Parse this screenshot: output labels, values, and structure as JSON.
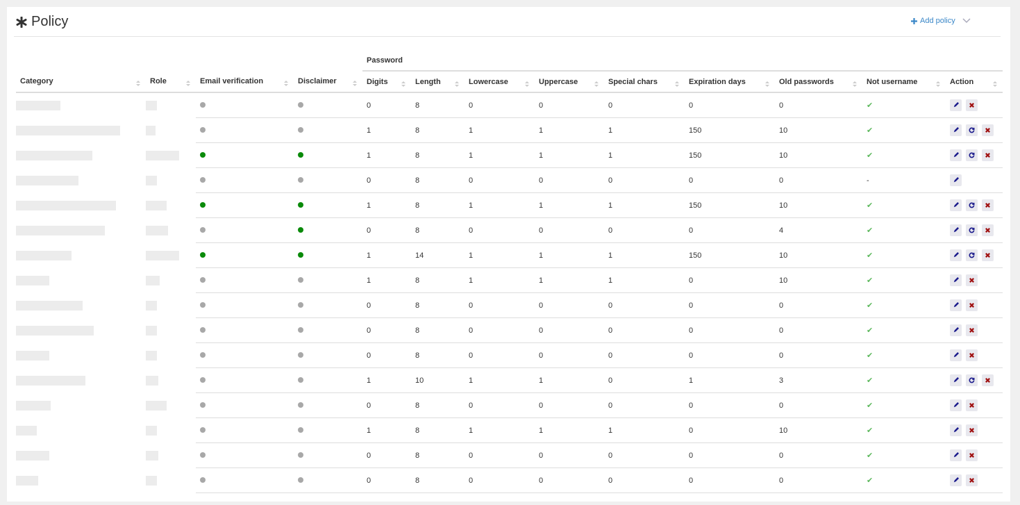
{
  "header": {
    "title": "Policy",
    "add_button": "Add policy"
  },
  "table": {
    "group_header": "Password",
    "columns": [
      "Category",
      "Role",
      "Email verification",
      "Disclaimer",
      "Digits",
      "Length",
      "Lowercase",
      "Uppercase",
      "Special chars",
      "Expiration days",
      "Old passwords",
      "Not username",
      "Action"
    ],
    "rows": [
      {
        "email": false,
        "disclaimer": false,
        "digits": 0,
        "length": 8,
        "lowercase": 0,
        "uppercase": 0,
        "special": 0,
        "expiration": 0,
        "old": 0,
        "not_username": "✔",
        "actions": [
          "edit",
          "delete"
        ]
      },
      {
        "email": false,
        "disclaimer": false,
        "digits": 1,
        "length": 8,
        "lowercase": 1,
        "uppercase": 1,
        "special": 1,
        "expiration": 150,
        "old": 10,
        "not_username": "✔",
        "actions": [
          "edit",
          "reset",
          "delete"
        ]
      },
      {
        "email": true,
        "disclaimer": true,
        "digits": 1,
        "length": 8,
        "lowercase": 1,
        "uppercase": 1,
        "special": 1,
        "expiration": 150,
        "old": 10,
        "not_username": "✔",
        "actions": [
          "edit",
          "reset",
          "delete"
        ]
      },
      {
        "email": false,
        "disclaimer": false,
        "digits": 0,
        "length": 8,
        "lowercase": 0,
        "uppercase": 0,
        "special": 0,
        "expiration": 0,
        "old": 0,
        "not_username": "-",
        "actions": [
          "edit"
        ]
      },
      {
        "email": true,
        "disclaimer": true,
        "digits": 1,
        "length": 8,
        "lowercase": 1,
        "uppercase": 1,
        "special": 1,
        "expiration": 150,
        "old": 10,
        "not_username": "✔",
        "actions": [
          "edit",
          "reset",
          "delete"
        ]
      },
      {
        "email": false,
        "disclaimer": true,
        "digits": 0,
        "length": 8,
        "lowercase": 0,
        "uppercase": 0,
        "special": 0,
        "expiration": 0,
        "old": 4,
        "not_username": "✔",
        "actions": [
          "edit",
          "reset",
          "delete"
        ]
      },
      {
        "email": true,
        "disclaimer": true,
        "digits": 1,
        "length": 14,
        "lowercase": 1,
        "uppercase": 1,
        "special": 1,
        "expiration": 150,
        "old": 10,
        "not_username": "✔",
        "actions": [
          "edit",
          "reset",
          "delete"
        ]
      },
      {
        "email": false,
        "disclaimer": false,
        "digits": 1,
        "length": 8,
        "lowercase": 1,
        "uppercase": 1,
        "special": 1,
        "expiration": 0,
        "old": 10,
        "not_username": "✔",
        "actions": [
          "edit",
          "delete"
        ]
      },
      {
        "email": false,
        "disclaimer": false,
        "digits": 0,
        "length": 8,
        "lowercase": 0,
        "uppercase": 0,
        "special": 0,
        "expiration": 0,
        "old": 0,
        "not_username": "✔",
        "actions": [
          "edit",
          "delete"
        ]
      },
      {
        "email": false,
        "disclaimer": false,
        "digits": 0,
        "length": 8,
        "lowercase": 0,
        "uppercase": 0,
        "special": 0,
        "expiration": 0,
        "old": 0,
        "not_username": "✔",
        "actions": [
          "edit",
          "delete"
        ]
      },
      {
        "email": false,
        "disclaimer": false,
        "digits": 0,
        "length": 8,
        "lowercase": 0,
        "uppercase": 0,
        "special": 0,
        "expiration": 0,
        "old": 0,
        "not_username": "✔",
        "actions": [
          "edit",
          "delete"
        ]
      },
      {
        "email": false,
        "disclaimer": false,
        "digits": 1,
        "length": 10,
        "lowercase": 1,
        "uppercase": 1,
        "special": 0,
        "expiration": 1,
        "old": 3,
        "not_username": "✔",
        "actions": [
          "edit",
          "reset",
          "delete"
        ]
      },
      {
        "email": false,
        "disclaimer": false,
        "digits": 0,
        "length": 8,
        "lowercase": 0,
        "uppercase": 0,
        "special": 0,
        "expiration": 0,
        "old": 0,
        "not_username": "✔",
        "actions": [
          "edit",
          "delete"
        ]
      },
      {
        "email": false,
        "disclaimer": false,
        "digits": 1,
        "length": 8,
        "lowercase": 1,
        "uppercase": 1,
        "special": 1,
        "expiration": 0,
        "old": 10,
        "not_username": "✔",
        "actions": [
          "edit",
          "delete"
        ]
      },
      {
        "email": false,
        "disclaimer": false,
        "digits": 0,
        "length": 8,
        "lowercase": 0,
        "uppercase": 0,
        "special": 0,
        "expiration": 0,
        "old": 0,
        "not_username": "✔",
        "actions": [
          "edit",
          "delete"
        ]
      },
      {
        "email": false,
        "disclaimer": false,
        "digits": 0,
        "length": 8,
        "lowercase": 0,
        "uppercase": 0,
        "special": 0,
        "expiration": 0,
        "old": 0,
        "not_username": "✔",
        "actions": [
          "edit",
          "delete"
        ]
      }
    ]
  }
}
